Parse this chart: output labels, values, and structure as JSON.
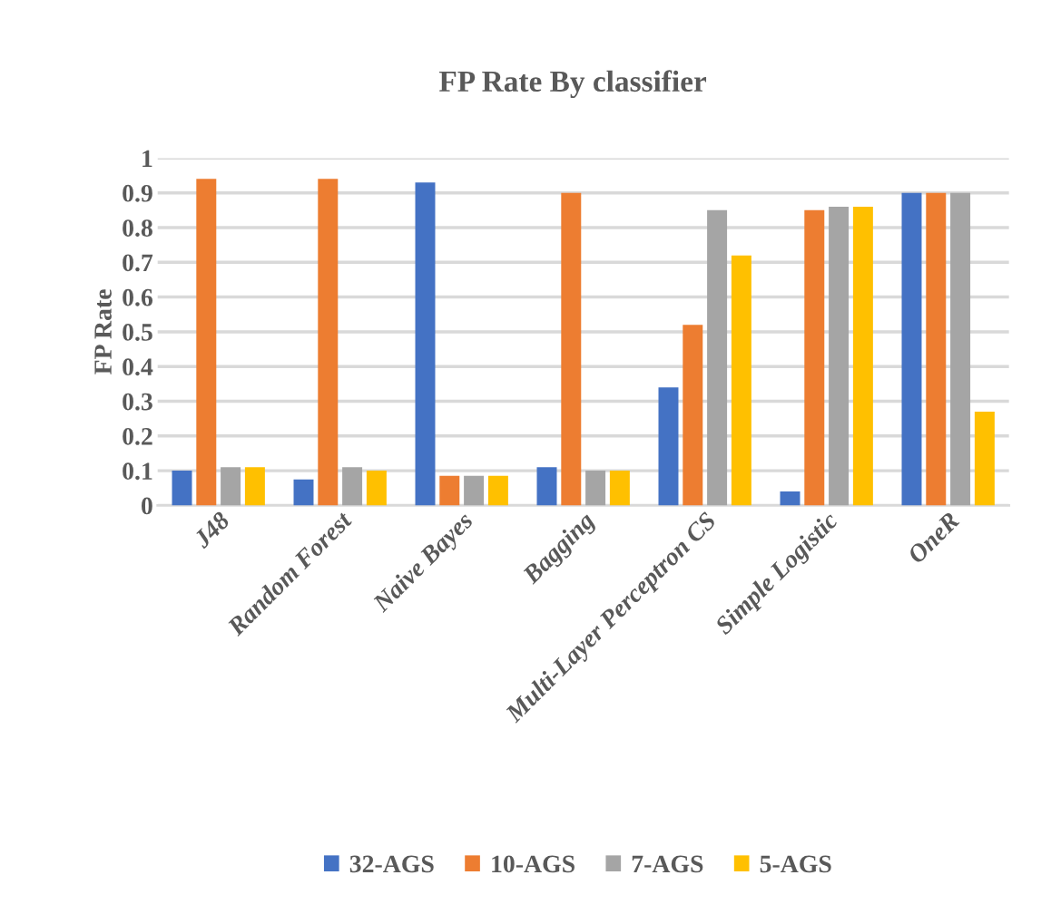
{
  "chart_data": {
    "type": "bar",
    "title": "FP Rate By classifier",
    "ylabel": "FP Rate",
    "categories": [
      "J48",
      "Random Forest",
      "Naive Bayes",
      "Bagging",
      "Multi-Layer Perceptron CS",
      "Simple Logistic",
      "OneR"
    ],
    "series": [
      {
        "name": "32-AGS",
        "color": "#4472c4",
        "values": [
          0.1,
          0.075,
          0.93,
          0.11,
          0.34,
          0.04,
          0.9
        ]
      },
      {
        "name": "10-AGS",
        "color": "#ed7d31",
        "values": [
          0.94,
          0.94,
          0.085,
          0.9,
          0.52,
          0.85,
          0.9
        ]
      },
      {
        "name": "7-AGS",
        "color": "#a5a5a5",
        "values": [
          0.11,
          0.11,
          0.085,
          0.1,
          0.85,
          0.86,
          0.9
        ]
      },
      {
        "name": "5-AGS",
        "color": "#ffc000",
        "values": [
          0.11,
          0.1,
          0.085,
          0.1,
          0.72,
          0.86,
          0.27
        ]
      }
    ],
    "ylim": [
      0,
      1
    ],
    "yticks": [
      0,
      0.1,
      0.2,
      0.3,
      0.4,
      0.5,
      0.6,
      0.7,
      0.8,
      0.9,
      1
    ],
    "grid": "y",
    "legend": "bottom"
  }
}
